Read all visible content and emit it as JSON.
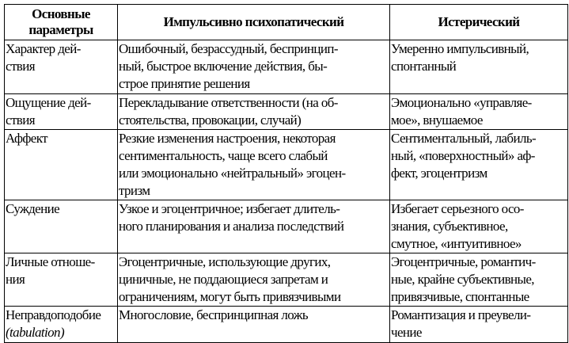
{
  "table": {
    "headers": [
      "Основные\nпараметры",
      "Импульсивно психопатический",
      "Истерический"
    ],
    "rows": [
      {
        "param": "Характер дей-\nствия",
        "impulsive": "Ошибочный, безрассудный, беспринцип-\nный, быстрое включение действия, бы-\nстрое принятие решения",
        "hysterical": "Умеренно импульсивный,\nспонтанный"
      },
      {
        "param": "Ощущение дей-\nствия",
        "impulsive": "Перекладывание ответственности (на об-\nстоятельства, провокации, случай)",
        "hysterical": "Эмоционально «управляе-\nмое», внушаемое"
      },
      {
        "param": "Аффект",
        "impulsive": "Резкие изменения настроения, некоторая\nсентиментальность, чаще всего слабый\nили эмоционально «нейтральный» эгоцен-\nтризм",
        "hysterical": "Сентиментальный, лабиль-\nный, «поверхностный» аф-\nфект, эгоцентризм"
      },
      {
        "param": "Суждение",
        "impulsive": "Узкое и эгоцентричное; избегает длитель-\nного планирования и анализа последствий",
        "hysterical": "Избегает серьезного осо-\nзнания, субъективное,\nсмутное, «интуитивное»"
      },
      {
        "param": "Личные отноше-\nния",
        "impulsive": "Эгоцентричные, использующие других,\nциничные, не поддающиеся запретам и\nограничениям, могут быть привязчивыми",
        "hysterical": "Эгоцентричные, романтич-\nные, крайне субъективные,\nпривязчивые, спонтанные"
      },
      {
        "param": "Неправдоподобие",
        "param_note": "(tabulation)",
        "impulsive": "Многословие, беспринципная ложь",
        "hysterical": "Романтизация и преувели-\nчение"
      }
    ]
  }
}
